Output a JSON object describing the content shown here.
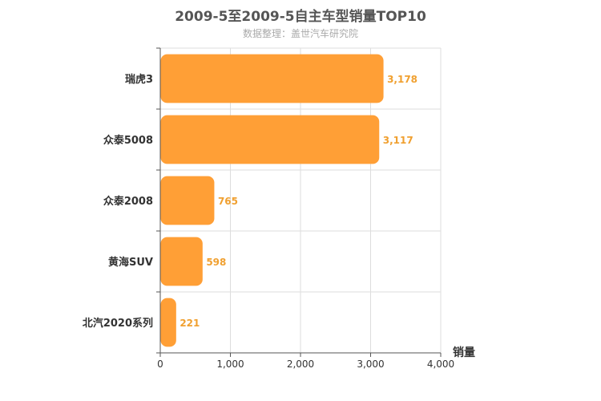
{
  "chart_data": {
    "type": "bar",
    "orientation": "horizontal",
    "title": "2009-5至2009-5自主车型销量TOP10",
    "subtitle": "数据整理：盖世汽车研究院",
    "xlabel": "销量",
    "categories": [
      "瑞虎3",
      "众泰5008",
      "众泰2008",
      "黄海SUV",
      "北汽2020系列"
    ],
    "values": [
      3178,
      3117,
      765,
      598,
      221
    ],
    "value_labels": [
      "3,178",
      "3,117",
      "765",
      "598",
      "221"
    ],
    "xlim": [
      0,
      4000
    ],
    "x_ticks": [
      0,
      1000,
      2000,
      3000,
      4000
    ],
    "x_tick_labels": [
      "0",
      "1,000",
      "2,000",
      "3,000",
      "4,000"
    ],
    "grid": true,
    "bar_color": "#ff9f36",
    "label_color": "#f0a030"
  }
}
